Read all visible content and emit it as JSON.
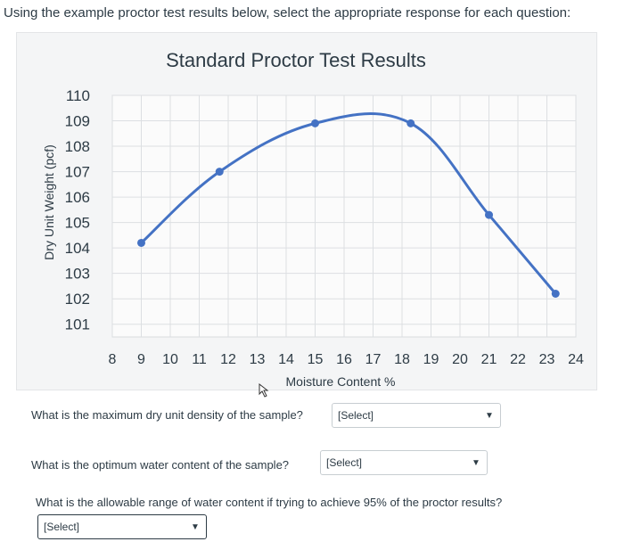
{
  "instruction": "Using the example proctor test results below, select the appropriate response for each question:",
  "chart_data": {
    "type": "line",
    "title": "Standard Proctor Test Results",
    "xlabel": "Moisture Content %",
    "ylabel": "Dry Unit Weight (pcf)",
    "xlim": [
      8,
      24
    ],
    "ylim": [
      100.5,
      110
    ],
    "x_ticks": [
      "8",
      "9",
      "10",
      "11",
      "12",
      "13",
      "14",
      "15",
      "16",
      "17",
      "18",
      "19",
      "20",
      "21",
      "22",
      "23",
      "24"
    ],
    "y_ticks": [
      "110",
      "109",
      "108",
      "107",
      "106",
      "105",
      "104",
      "103",
      "102",
      "101"
    ],
    "grid": true,
    "series": [
      {
        "points": [
          {
            "x": 9,
            "y": 104.2
          },
          {
            "x": 11.7,
            "y": 107.0
          },
          {
            "x": 15,
            "y": 108.9
          },
          {
            "x": 18.3,
            "y": 108.9
          },
          {
            "x": 21,
            "y": 105.3
          },
          {
            "x": 23.3,
            "y": 102.2
          }
        ],
        "color": "#4472c4"
      }
    ]
  },
  "questions": [
    {
      "text": "What is the maximum dry unit density of the sample?",
      "select": "[Select]"
    },
    {
      "text": "What is the optimum water content of the sample?",
      "select": "[Select]"
    },
    {
      "text": "What is the allowable range of water content if trying to achieve 95% of the proctor results?",
      "select": "[Select]"
    }
  ],
  "icons": {
    "dropdown": "chevron-down-icon",
    "pointer": "mouse-cursor-icon"
  }
}
